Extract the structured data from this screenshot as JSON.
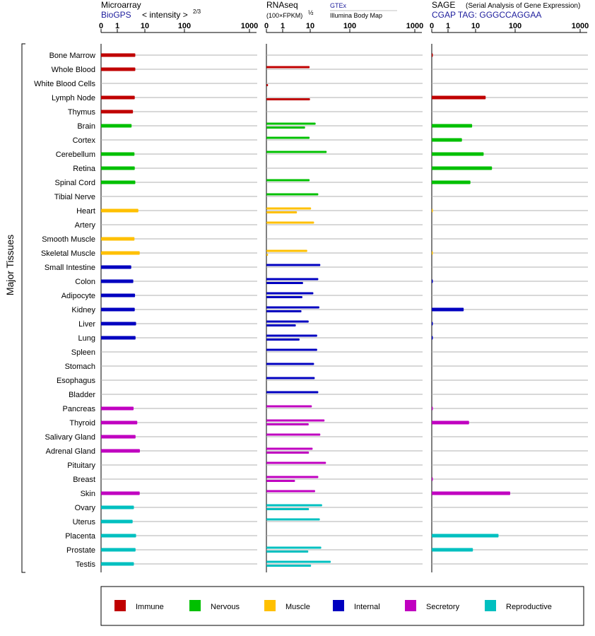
{
  "chart_data": {
    "type": "bar",
    "ylabel": "Major Tissues",
    "categories": [
      "Bone Marrow",
      "Whole Blood",
      "White Blood Cells",
      "Lymph Node",
      "Thymus",
      "Brain",
      "Cortex",
      "Cerebellum",
      "Retina",
      "Spinal Cord",
      "Tibial Nerve",
      "Heart",
      "Artery",
      "Smooth Muscle",
      "Skeletal Muscle",
      "Small Intestine",
      "Colon",
      "Adipocyte",
      "Kidney",
      "Liver",
      "Lung",
      "Spleen",
      "Stomach",
      "Esophagus",
      "Bladder",
      "Pancreas",
      "Thyroid",
      "Salivary Gland",
      "Adrenal Gland",
      "Pituitary",
      "Breast",
      "Skin",
      "Ovary",
      "Uterus",
      "Placenta",
      "Prostate",
      "Testis"
    ],
    "groups": [
      {
        "name": "Immune",
        "color": "#c00000",
        "rows": [
          0,
          1,
          2,
          3,
          4
        ]
      },
      {
        "name": "Nervous",
        "color": "#00c000",
        "rows": [
          5,
          6,
          7,
          8,
          9,
          10
        ]
      },
      {
        "name": "Muscle",
        "color": "#ffc000",
        "rows": [
          11,
          12,
          13,
          14
        ]
      },
      {
        "name": "Internal",
        "color": "#0000c0",
        "rows": [
          15,
          16,
          17,
          18,
          19,
          20,
          21,
          22,
          23,
          24
        ]
      },
      {
        "name": "Secretory",
        "color": "#c000c0",
        "rows": [
          25,
          26,
          27,
          28,
          29,
          30,
          31
        ]
      },
      {
        "name": "Reproductive",
        "color": "#00c0c0",
        "rows": [
          32,
          33,
          34,
          35,
          36
        ]
      }
    ],
    "ticks": [
      "0",
      "1",
      "10",
      "100",
      "1000"
    ],
    "panels": [
      {
        "title": "Microarray",
        "subtitle": "BioGPS",
        "subtitle_note": "< intensity >",
        "exponent": "2/3",
        "series": [
          {
            "name": "Microarray",
            "values": [
              4.5,
              4.5,
              null,
              4.3,
              3.7,
              3.3,
              null,
              4.2,
              4.3,
              4.5,
              null,
              5.8,
              null,
              4.2,
              6.5,
              3.2,
              3.8,
              4.4,
              4.3,
              4.8,
              4.6,
              null,
              null,
              null,
              null,
              3.9,
              5.3,
              4.6,
              6.6,
              null,
              null,
              6.5,
              4.0,
              3.6,
              4.8,
              4.6,
              4.0
            ]
          }
        ]
      },
      {
        "title": "RNAseq",
        "subtitle": "(100×FPKM)",
        "exponent": "½",
        "source_top": "GTEx",
        "source_bottom": "Illumina Body Map",
        "series": [
          {
            "name": "GTEx",
            "values": [
              null,
              9.5,
              null,
              null,
              null,
              13.7,
              9.5,
              26,
              null,
              9.5,
              16,
              10.5,
              12.5,
              null,
              7.8,
              18,
              16,
              12,
              17,
              8.8,
              15,
              15,
              12.5,
              13,
              16,
              11,
              23,
              18,
              11.5,
              25,
              16,
              13.3,
              20,
              17.5,
              null,
              19,
              33
            ]
          },
          {
            "name": "Illumina Body Map",
            "values": [
              null,
              null,
              0.1,
              9.8,
              null,
              6.5,
              null,
              null,
              null,
              null,
              null,
              3.3,
              null,
              null,
              0.1,
              null,
              5.5,
              5.2,
              4.8,
              3.0,
              4.1,
              null,
              null,
              null,
              null,
              null,
              8.8,
              null,
              9.0,
              null,
              2.8,
              null,
              9.0,
              null,
              null,
              8.5,
              10.5
            ]
          }
        ]
      },
      {
        "title": "SAGE",
        "subtitle": "CGAP TAG: GGGCCAGGAA",
        "subtitle_note": "(Serial Analysis of Gene Expression)",
        "series": [
          {
            "name": "SAGE",
            "values": [
              0.05,
              null,
              null,
              18,
              null,
              7.5,
              3.2,
              16,
              26,
              6.5,
              null,
              0.03,
              null,
              null,
              0.03,
              null,
              0.05,
              null,
              3.7,
              0.05,
              0.05,
              null,
              null,
              null,
              null,
              0.05,
              5.8,
              null,
              null,
              null,
              0.05,
              75,
              null,
              null,
              38,
              8,
              null
            ]
          }
        ]
      }
    ]
  }
}
